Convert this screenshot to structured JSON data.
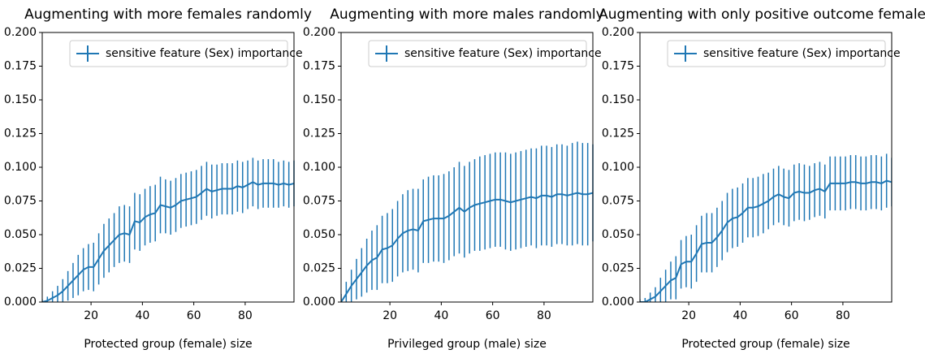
{
  "chart_data": [
    {
      "type": "errorbar",
      "title": "Augmenting with more females randomly",
      "x_label": "Protected group (female) size",
      "x": [
        1,
        3,
        5,
        7,
        9,
        11,
        13,
        15,
        17,
        19,
        21,
        23,
        25,
        27,
        29,
        31,
        33,
        35,
        37,
        39,
        41,
        43,
        45,
        47,
        49,
        51,
        53,
        55,
        57,
        59,
        61,
        63,
        65,
        67,
        69,
        71,
        73,
        75,
        77,
        79,
        81,
        83,
        85,
        87,
        89,
        91,
        93,
        95,
        97,
        99
      ],
      "series": [
        {
          "name": "sensitive feature (Sex) importance",
          "color": "#1f77b4",
          "values": [
            0.0,
            0.001,
            0.003,
            0.005,
            0.008,
            0.012,
            0.016,
            0.02,
            0.024,
            0.026,
            0.026,
            0.032,
            0.038,
            0.042,
            0.046,
            0.05,
            0.051,
            0.05,
            0.06,
            0.059,
            0.063,
            0.065,
            0.066,
            0.072,
            0.071,
            0.07,
            0.072,
            0.075,
            0.076,
            0.077,
            0.078,
            0.081,
            0.084,
            0.082,
            0.083,
            0.084,
            0.084,
            0.084,
            0.086,
            0.085,
            0.087,
            0.089,
            0.087,
            0.088,
            0.088,
            0.088,
            0.087,
            0.088,
            0.087,
            0.088
          ],
          "errors": [
            0.002,
            0.003,
            0.005,
            0.007,
            0.009,
            0.011,
            0.013,
            0.015,
            0.016,
            0.017,
            0.018,
            0.019,
            0.02,
            0.02,
            0.02,
            0.021,
            0.021,
            0.021,
            0.021,
            0.021,
            0.021,
            0.021,
            0.021,
            0.021,
            0.02,
            0.02,
            0.02,
            0.02,
            0.02,
            0.02,
            0.02,
            0.02,
            0.02,
            0.02,
            0.019,
            0.019,
            0.019,
            0.019,
            0.019,
            0.019,
            0.018,
            0.018,
            0.018,
            0.018,
            0.018,
            0.018,
            0.017,
            0.017,
            0.017,
            0.017
          ]
        }
      ],
      "xlim": [
        1,
        99
      ],
      "xticks": [
        20,
        40,
        60,
        80
      ],
      "ylim": [
        0,
        0.2
      ],
      "yticks": [
        {
          "value": 0,
          "label": "0.000"
        },
        {
          "value": 0.025,
          "label": "0.025"
        },
        {
          "value": 0.05,
          "label": "0.050"
        },
        {
          "value": 0.075,
          "label": "0.075"
        },
        {
          "value": 0.1,
          "label": "0.100"
        },
        {
          "value": 0.125,
          "label": "0.125"
        },
        {
          "value": 0.15,
          "label": "0.150"
        },
        {
          "value": 0.175,
          "label": "0.175"
        },
        {
          "value": 0.2,
          "label": "0.200"
        }
      ],
      "legend": "upper right"
    },
    {
      "type": "errorbar",
      "title": "Augmenting with more males randomly",
      "x_label": "Privileged group (male) size",
      "x": [
        1,
        3,
        5,
        7,
        9,
        11,
        13,
        15,
        17,
        19,
        21,
        23,
        25,
        27,
        29,
        31,
        33,
        35,
        37,
        39,
        41,
        43,
        45,
        47,
        49,
        51,
        53,
        55,
        57,
        59,
        61,
        63,
        65,
        67,
        69,
        71,
        73,
        75,
        77,
        79,
        81,
        83,
        85,
        87,
        89,
        91,
        93,
        95,
        97,
        99
      ],
      "series": [
        {
          "name": "sensitive feature (Sex) importance",
          "color": "#1f77b4",
          "values": [
            0.0,
            0.006,
            0.012,
            0.017,
            0.022,
            0.027,
            0.031,
            0.033,
            0.039,
            0.04,
            0.042,
            0.047,
            0.051,
            0.053,
            0.054,
            0.053,
            0.06,
            0.061,
            0.062,
            0.062,
            0.062,
            0.064,
            0.067,
            0.07,
            0.067,
            0.07,
            0.072,
            0.073,
            0.074,
            0.075,
            0.076,
            0.076,
            0.075,
            0.074,
            0.075,
            0.076,
            0.077,
            0.078,
            0.077,
            0.079,
            0.079,
            0.078,
            0.08,
            0.08,
            0.079,
            0.08,
            0.081,
            0.08,
            0.08,
            0.081
          ],
          "errors": [
            0.006,
            0.009,
            0.012,
            0.015,
            0.018,
            0.02,
            0.022,
            0.024,
            0.025,
            0.026,
            0.027,
            0.028,
            0.029,
            0.03,
            0.03,
            0.031,
            0.031,
            0.032,
            0.032,
            0.032,
            0.033,
            0.033,
            0.033,
            0.034,
            0.034,
            0.034,
            0.034,
            0.035,
            0.035,
            0.035,
            0.035,
            0.035,
            0.036,
            0.036,
            0.036,
            0.036,
            0.036,
            0.036,
            0.037,
            0.037,
            0.037,
            0.037,
            0.037,
            0.037,
            0.037,
            0.038,
            0.038,
            0.038,
            0.038,
            0.036
          ]
        }
      ],
      "xlim": [
        1,
        99
      ],
      "xticks": [
        20,
        40,
        60,
        80
      ],
      "ylim": [
        0,
        0.2
      ],
      "yticks": [
        {
          "value": 0,
          "label": "0.000"
        },
        {
          "value": 0.025,
          "label": "0.025"
        },
        {
          "value": 0.05,
          "label": "0.050"
        },
        {
          "value": 0.075,
          "label": "0.075"
        },
        {
          "value": 0.1,
          "label": "0.100"
        },
        {
          "value": 0.125,
          "label": "0.125"
        },
        {
          "value": 0.15,
          "label": "0.150"
        },
        {
          "value": 0.175,
          "label": "0.175"
        },
        {
          "value": 0.2,
          "label": "0.200"
        }
      ],
      "legend": "upper right"
    },
    {
      "type": "errorbar",
      "title": "Augmenting with only positive outcome females",
      "x_label": "Protected group (female) size",
      "x": [
        1,
        3,
        5,
        7,
        9,
        11,
        13,
        15,
        17,
        19,
        21,
        23,
        25,
        27,
        29,
        31,
        33,
        35,
        37,
        39,
        41,
        43,
        45,
        47,
        49,
        51,
        53,
        55,
        57,
        59,
        61,
        63,
        65,
        67,
        69,
        71,
        73,
        75,
        77,
        79,
        81,
        83,
        85,
        87,
        89,
        91,
        93,
        95,
        97,
        99
      ],
      "series": [
        {
          "name": "sensitive feature (Sex) importance",
          "color": "#1f77b4",
          "values": [
            0.0,
            0.0,
            0.002,
            0.004,
            0.008,
            0.012,
            0.016,
            0.018,
            0.028,
            0.03,
            0.03,
            0.036,
            0.043,
            0.044,
            0.044,
            0.048,
            0.053,
            0.059,
            0.062,
            0.063,
            0.066,
            0.07,
            0.07,
            0.071,
            0.073,
            0.075,
            0.078,
            0.08,
            0.078,
            0.077,
            0.081,
            0.082,
            0.081,
            0.081,
            0.083,
            0.084,
            0.082,
            0.088,
            0.088,
            0.088,
            0.088,
            0.089,
            0.089,
            0.088,
            0.088,
            0.089,
            0.089,
            0.088,
            0.09,
            0.089
          ],
          "errors": [
            0.002,
            0.003,
            0.005,
            0.007,
            0.01,
            0.012,
            0.014,
            0.016,
            0.018,
            0.019,
            0.02,
            0.021,
            0.021,
            0.022,
            0.022,
            0.022,
            0.022,
            0.022,
            0.022,
            0.022,
            0.022,
            0.022,
            0.022,
            0.022,
            0.022,
            0.021,
            0.021,
            0.021,
            0.021,
            0.021,
            0.021,
            0.021,
            0.021,
            0.02,
            0.02,
            0.02,
            0.02,
            0.02,
            0.02,
            0.02,
            0.02,
            0.02,
            0.02,
            0.02,
            0.02,
            0.02,
            0.02,
            0.02,
            0.02,
            0.018
          ]
        }
      ],
      "xlim": [
        1,
        99
      ],
      "xticks": [
        20,
        40,
        60,
        80
      ],
      "ylim": [
        0,
        0.2
      ],
      "yticks": [
        {
          "value": 0,
          "label": "0.000"
        },
        {
          "value": 0.025,
          "label": "0.025"
        },
        {
          "value": 0.05,
          "label": "0.050"
        },
        {
          "value": 0.075,
          "label": "0.075"
        },
        {
          "value": 0.1,
          "label": "0.100"
        },
        {
          "value": 0.125,
          "label": "0.125"
        },
        {
          "value": 0.15,
          "label": "0.150"
        },
        {
          "value": 0.175,
          "label": "0.175"
        },
        {
          "value": 0.2,
          "label": "0.200"
        }
      ],
      "legend": "upper right"
    }
  ]
}
